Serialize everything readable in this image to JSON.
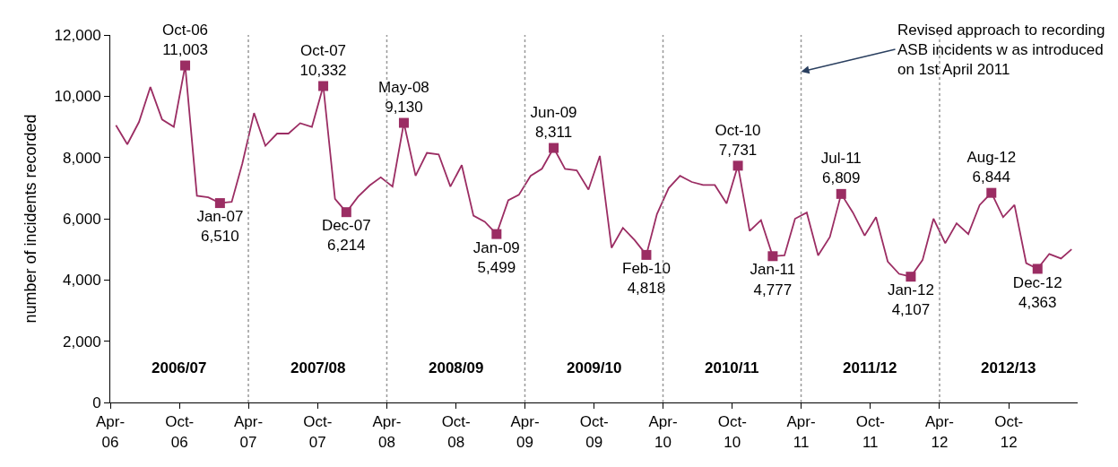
{
  "chart_data": {
    "type": "line",
    "ylabel": "number of incidents recorded",
    "xlim": [
      "2006-04-01",
      "2013-04-01"
    ],
    "xticks": [
      {
        "value": "2006-04-01",
        "label": "Apr-\n06"
      },
      {
        "value": "2006-10-01",
        "label": "Oct-\n06"
      },
      {
        "value": "2007-04-01",
        "label": "Apr-\n07"
      },
      {
        "value": "2007-10-01",
        "label": "Oct-\n07"
      },
      {
        "value": "2008-04-01",
        "label": "Apr-\n08"
      },
      {
        "value": "2008-10-01",
        "label": "Oct-\n08"
      },
      {
        "value": "2009-04-01",
        "label": "Apr-\n09"
      },
      {
        "value": "2009-10-01",
        "label": "Oct-\n09"
      },
      {
        "value": "2010-04-01",
        "label": "Apr-\n10"
      },
      {
        "value": "2010-10-01",
        "label": "Oct-\n10"
      },
      {
        "value": "2011-04-01",
        "label": "Apr-\n11"
      },
      {
        "value": "2011-10-01",
        "label": "Oct-\n11"
      },
      {
        "value": "2012-04-01",
        "label": "Apr-\n12"
      },
      {
        "value": "2012-10-01",
        "label": "Oct-\n12"
      }
    ],
    "ylim": [
      0,
      12000
    ],
    "yticks": [
      0,
      {
        "value": 2000,
        "label": "2,000"
      },
      {
        "value": 4000,
        "label": "4,000"
      },
      {
        "value": 6000,
        "label": "6,000"
      },
      {
        "value": 8000,
        "label": "8,000"
      },
      {
        "value": 10000,
        "label": "10,000"
      },
      {
        "value": 12000,
        "label": "12,000"
      }
    ],
    "series": [
      {
        "color": "#9b2d63",
        "marker": "none",
        "line_style": "solid",
        "x": [
          "2006-04-16",
          "2006-05-16",
          "2006-06-16",
          "2006-07-16",
          "2006-08-16",
          "2006-09-16",
          "2006-10-16",
          "2006-11-16",
          "2006-12-16",
          "2007-01-16",
          "2007-02-16",
          "2007-03-16",
          "2007-04-16",
          "2007-05-16",
          "2007-06-16",
          "2007-07-16",
          "2007-08-16",
          "2007-09-16",
          "2007-10-16",
          "2007-11-16",
          "2007-12-16",
          "2008-01-16",
          "2008-02-16",
          "2008-03-16",
          "2008-04-16",
          "2008-05-16",
          "2008-06-16",
          "2008-07-16",
          "2008-08-16",
          "2008-09-16",
          "2008-10-16",
          "2008-11-16",
          "2008-12-16",
          "2009-01-16",
          "2009-02-16",
          "2009-03-16",
          "2009-04-16",
          "2009-05-16",
          "2009-06-16",
          "2009-07-16",
          "2009-08-16",
          "2009-09-16",
          "2009-10-16",
          "2009-11-16",
          "2009-12-16",
          "2010-01-16",
          "2010-02-16",
          "2010-03-16",
          "2010-04-16",
          "2010-05-16",
          "2010-06-16",
          "2010-07-16",
          "2010-08-16",
          "2010-09-16",
          "2010-10-16",
          "2010-11-16",
          "2010-12-16",
          "2011-01-16",
          "2011-02-16",
          "2011-03-16",
          "2011-04-16",
          "2011-05-16",
          "2011-06-16",
          "2011-07-16",
          "2011-08-16",
          "2011-09-16",
          "2011-10-16",
          "2011-11-16",
          "2011-12-16",
          "2012-01-16",
          "2012-02-16",
          "2012-03-16",
          "2012-04-16",
          "2012-05-16",
          "2012-06-16",
          "2012-07-16",
          "2012-08-16",
          "2012-09-16",
          "2012-10-16",
          "2012-11-16",
          "2012-12-16",
          "2013-01-16",
          "2013-02-16",
          "2013-03-16"
        ],
        "values": [
          9050,
          8430,
          9160,
          10300,
          9240,
          9000,
          11003,
          6750,
          6700,
          6510,
          6550,
          7800,
          9450,
          8380,
          8780,
          8780,
          9120,
          9000,
          10332,
          6650,
          6214,
          6720,
          7090,
          7350,
          7050,
          9130,
          7400,
          8150,
          8100,
          7050,
          7750,
          6100,
          5900,
          5499,
          6600,
          6780,
          7400,
          7630,
          8311,
          7630,
          7580,
          6950,
          8050,
          5050,
          5700,
          5300,
          4818,
          6150,
          7000,
          7400,
          7200,
          7100,
          7100,
          6500,
          7731,
          5600,
          5950,
          4777,
          4800,
          6000,
          6200,
          4800,
          5400,
          6809,
          6200,
          5450,
          6050,
          4600,
          4200,
          4107,
          4650,
          6000,
          5200,
          5850,
          5500,
          6450,
          6844,
          6050,
          6450,
          4550,
          4363,
          4850,
          4700,
          5000
        ]
      },
      {
        "type": "scatter",
        "color": "#9b2d63",
        "marker": "square",
        "x": [
          "2006-10-16",
          "2007-01-16",
          "2007-10-16",
          "2007-12-16",
          "2008-05-16",
          "2009-01-16",
          "2009-06-16",
          "2010-02-16",
          "2010-10-16",
          "2011-01-16",
          "2011-07-16",
          "2012-01-16",
          "2012-08-16",
          "2012-12-16"
        ],
        "values": [
          11003,
          6510,
          10332,
          6214,
          9130,
          5499,
          8311,
          4818,
          7731,
          4777,
          6809,
          4107,
          6844,
          4363
        ],
        "value_labels": [
          "Oct-06\n11,003",
          "Jan-07\n6,510",
          "Oct-07\n10,332",
          "Dec-07\n6,214",
          "May-08\n9,130",
          "Jan-09\n5,499",
          "Jun-09\n8,311",
          "Feb-10\n4,818",
          "Oct-10\n7,731",
          "Jan-11\n4,777",
          "Jul-11\n6,809",
          "Jan-12\n4,107",
          "Aug-12\n6,844",
          "Dec-12\n4,363"
        ]
      }
    ],
    "ref_lines": [
      {
        "axis": "x",
        "value": "2007-04-01",
        "color": "#999999",
        "line_style": "dotted"
      },
      {
        "axis": "x",
        "value": "2008-04-01",
        "color": "#999999",
        "line_style": "dotted"
      },
      {
        "axis": "x",
        "value": "2009-04-01",
        "color": "#999999",
        "line_style": "dotted"
      },
      {
        "axis": "x",
        "value": "2010-04-01",
        "color": "#999999",
        "line_style": "dotted"
      },
      {
        "axis": "x",
        "value": "2011-04-01",
        "color": "#999999",
        "line_style": "dotted"
      },
      {
        "axis": "x",
        "value": "2012-04-01",
        "color": "#999999",
        "line_style": "dotted"
      }
    ],
    "annotations": [
      "2006/07",
      "2007/08",
      "2008/09",
      "2009/10",
      "2010/11",
      "2011/12",
      "2012/13",
      {
        "text": "Revised approach to recording\nASB incidents w as introduced\non 1st April 2011",
        "x": "2011-04-01",
        "y": 10800
      }
    ]
  }
}
